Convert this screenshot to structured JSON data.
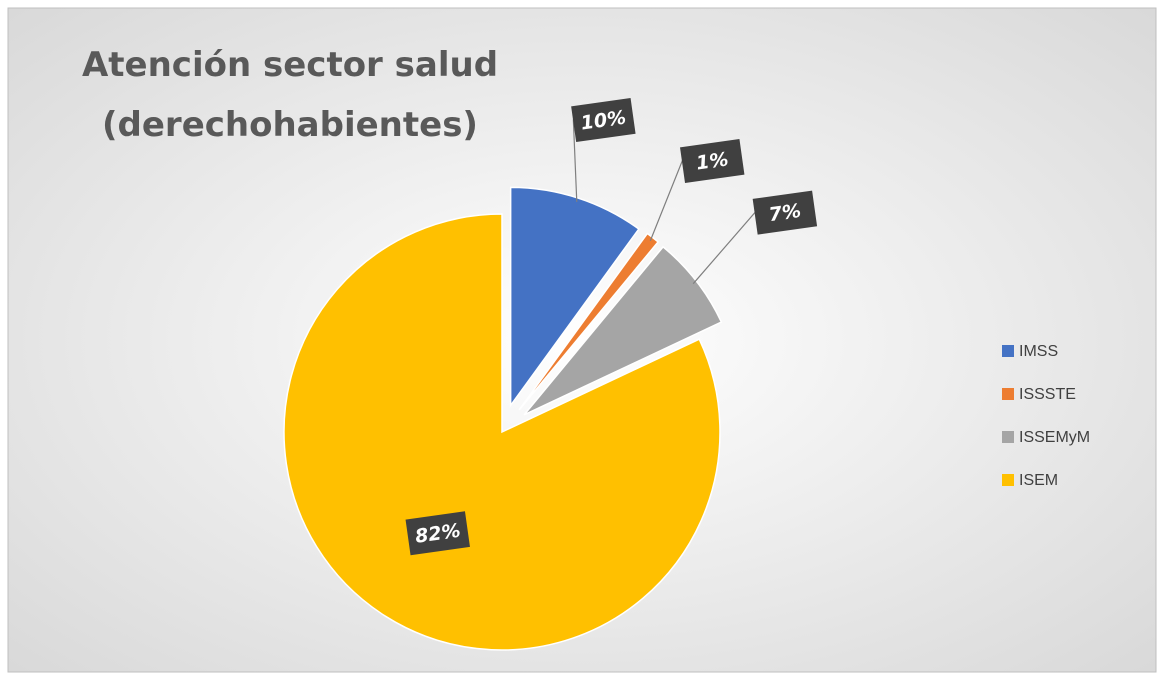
{
  "chart_data": {
    "type": "pie",
    "title": [
      "Atención sector salud",
      "(derechohabientes)"
    ],
    "categories": [
      "IMSS",
      "ISSSTE",
      "ISSEMyM",
      "ISEM"
    ],
    "values": [
      10,
      1,
      7,
      82
    ],
    "value_labels": [
      "10%",
      "1%",
      "7%",
      "82%"
    ],
    "colors": [
      "#4472c4",
      "#ed7d31",
      "#a5a5a5",
      "#ffc000"
    ],
    "legend": "right"
  }
}
